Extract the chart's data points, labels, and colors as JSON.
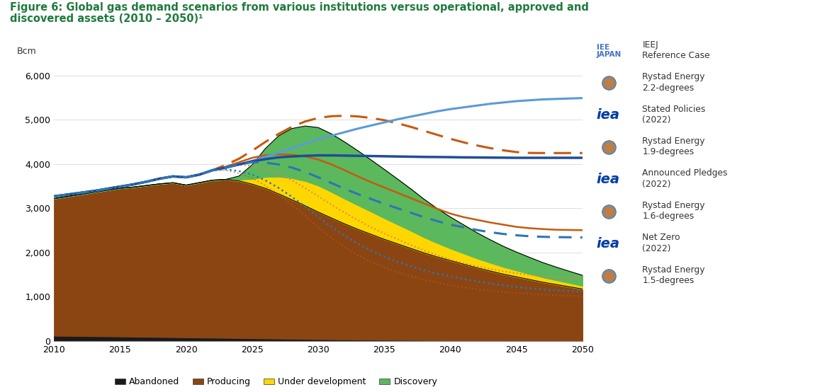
{
  "title_line1": "Figure 6: Global gas demand scenarios from various institutions versus operational, approved and",
  "title_line2": "discovered assets (2010 – 2050)¹",
  "ylabel": "Bcm",
  "years": [
    2010,
    2011,
    2012,
    2013,
    2014,
    2015,
    2016,
    2017,
    2018,
    2019,
    2020,
    2021,
    2022,
    2023,
    2024,
    2025,
    2026,
    2027,
    2028,
    2029,
    2030,
    2031,
    2032,
    2033,
    2034,
    2035,
    2036,
    2037,
    2038,
    2039,
    2040,
    2041,
    2042,
    2043,
    2044,
    2045,
    2046,
    2047,
    2048,
    2049,
    2050
  ],
  "abandoned": [
    120,
    118,
    115,
    112,
    108,
    104,
    100,
    96,
    92,
    88,
    84,
    80,
    76,
    72,
    68,
    64,
    60,
    56,
    52,
    48,
    44,
    40,
    37,
    34,
    31,
    28,
    26,
    24,
    22,
    20,
    18,
    16,
    15,
    13,
    12,
    11,
    10,
    9,
    8,
    7,
    6
  ],
  "producing": [
    3100,
    3150,
    3200,
    3250,
    3300,
    3350,
    3380,
    3420,
    3460,
    3490,
    3440,
    3500,
    3560,
    3580,
    3550,
    3480,
    3390,
    3270,
    3140,
    3010,
    2870,
    2740,
    2610,
    2490,
    2380,
    2270,
    2170,
    2070,
    1970,
    1880,
    1800,
    1720,
    1640,
    1570,
    1500,
    1440,
    1380,
    1320,
    1270,
    1220,
    1170
  ],
  "under_dev": [
    0,
    0,
    0,
    0,
    0,
    0,
    0,
    0,
    0,
    0,
    0,
    0,
    0,
    0,
    30,
    120,
    260,
    390,
    490,
    560,
    600,
    590,
    570,
    545,
    515,
    480,
    440,
    400,
    355,
    315,
    275,
    245,
    215,
    188,
    165,
    145,
    128,
    112,
    98,
    86,
    75
  ],
  "discovery": [
    0,
    0,
    0,
    0,
    0,
    0,
    0,
    0,
    0,
    0,
    0,
    0,
    0,
    0,
    80,
    320,
    640,
    920,
    1120,
    1240,
    1310,
    1310,
    1280,
    1230,
    1165,
    1100,
    1025,
    945,
    860,
    780,
    710,
    645,
    580,
    520,
    465,
    415,
    372,
    332,
    296,
    264,
    235
  ],
  "ieej_ref": [
    3270,
    3310,
    3350,
    3390,
    3440,
    3490,
    3540,
    3600,
    3670,
    3720,
    3700,
    3760,
    3860,
    3920,
    3990,
    4070,
    4160,
    4260,
    4360,
    4460,
    4560,
    4640,
    4720,
    4800,
    4870,
    4940,
    5010,
    5070,
    5130,
    5190,
    5240,
    5280,
    5320,
    5360,
    5390,
    5420,
    5440,
    5460,
    5470,
    5480,
    5490
  ],
  "iea_stated": [
    3270,
    3310,
    3350,
    3390,
    3440,
    3490,
    3540,
    3600,
    3670,
    3720,
    3700,
    3760,
    3860,
    3920,
    3990,
    4060,
    4110,
    4150,
    4170,
    4185,
    4195,
    4195,
    4190,
    4185,
    4180,
    4175,
    4170,
    4165,
    4160,
    4158,
    4155,
    4150,
    4148,
    4145,
    4143,
    4140,
    4140,
    4140,
    4140,
    4140,
    4140
  ],
  "rystad_22": [
    3270,
    3310,
    3350,
    3390,
    3440,
    3490,
    3540,
    3600,
    3670,
    3720,
    3700,
    3760,
    3860,
    3980,
    4120,
    4300,
    4500,
    4680,
    4840,
    4960,
    5040,
    5080,
    5090,
    5075,
    5040,
    4990,
    4920,
    4840,
    4750,
    4660,
    4570,
    4490,
    4420,
    4360,
    4310,
    4270,
    4250,
    4248,
    4248,
    4248,
    4248
  ],
  "rystad_19": [
    3270,
    3310,
    3350,
    3390,
    3440,
    3490,
    3540,
    3600,
    3670,
    3720,
    3700,
    3760,
    3860,
    3940,
    4040,
    4140,
    4200,
    4220,
    4210,
    4170,
    4100,
    3990,
    3860,
    3720,
    3590,
    3470,
    3350,
    3230,
    3110,
    2990,
    2880,
    2800,
    2740,
    2680,
    2630,
    2580,
    2550,
    2530,
    2515,
    2510,
    2505
  ],
  "iea_pledges": [
    3270,
    3310,
    3350,
    3390,
    3440,
    3490,
    3540,
    3600,
    3670,
    3720,
    3700,
    3760,
    3860,
    3920,
    3990,
    4040,
    4030,
    3990,
    3920,
    3820,
    3700,
    3570,
    3440,
    3320,
    3210,
    3100,
    3000,
    2900,
    2800,
    2710,
    2630,
    2570,
    2510,
    2460,
    2420,
    2390,
    2368,
    2355,
    2348,
    2345,
    2340
  ],
  "rystad_16": [
    3270,
    3310,
    3350,
    3390,
    3440,
    3490,
    3540,
    3600,
    3670,
    3720,
    3700,
    3760,
    3860,
    3920,
    3980,
    3960,
    3890,
    3780,
    3630,
    3460,
    3270,
    3080,
    2900,
    2730,
    2570,
    2430,
    2300,
    2170,
    2050,
    1940,
    1840,
    1760,
    1690,
    1630,
    1575,
    1530,
    1495,
    1465,
    1445,
    1430,
    1420
  ],
  "iea_netzero": [
    3270,
    3310,
    3350,
    3390,
    3440,
    3490,
    3540,
    3600,
    3670,
    3720,
    3700,
    3760,
    3860,
    3880,
    3840,
    3760,
    3630,
    3460,
    3260,
    3040,
    2800,
    2580,
    2380,
    2200,
    2040,
    1910,
    1790,
    1690,
    1600,
    1520,
    1460,
    1400,
    1350,
    1300,
    1260,
    1220,
    1190,
    1165,
    1145,
    1130,
    1120
  ],
  "rystad_15": [
    3270,
    3310,
    3350,
    3390,
    3440,
    3490,
    3540,
    3600,
    3670,
    3720,
    3700,
    3760,
    3860,
    3860,
    3790,
    3680,
    3510,
    3310,
    3080,
    2830,
    2570,
    2330,
    2120,
    1940,
    1790,
    1670,
    1560,
    1465,
    1385,
    1320,
    1265,
    1215,
    1172,
    1140,
    1110,
    1085,
    1065,
    1048,
    1034,
    1022,
    1012
  ],
  "color_abandoned": "#1a1a1a",
  "color_producing": "#8B4513",
  "color_under_dev": "#FFD700",
  "color_discovery": "#5CB85C",
  "color_ieej": "#5B9BD5",
  "color_iea_stated": "#1F4E96",
  "color_rystad_22": "#C55A11",
  "color_rystad_19": "#C55A11",
  "color_iea_pledges": "#2E75B6",
  "color_rystad_16": "#C55A11",
  "color_iea_netzero": "#2E75B6",
  "color_rystad_15": "#C55A11",
  "title_color": "#1F7A3C",
  "bg_color": "#ffffff",
  "ylim": [
    0,
    6200
  ],
  "yticks": [
    0,
    1000,
    2000,
    3000,
    4000,
    5000,
    6000
  ]
}
